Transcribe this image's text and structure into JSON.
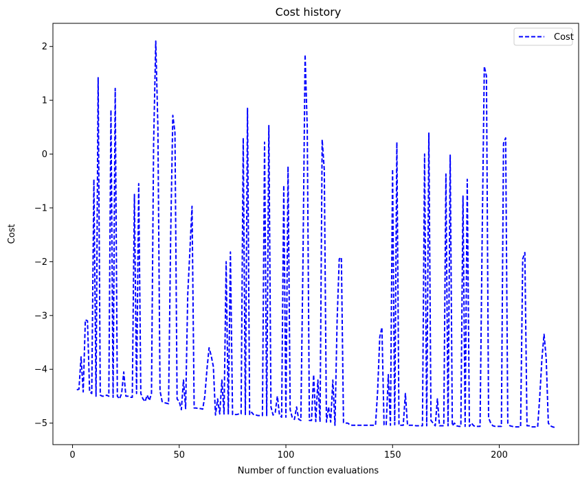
{
  "chart_data": {
    "type": "line",
    "title": "Cost history",
    "xlabel": "Number of function evaluations",
    "ylabel": "Cost",
    "xlim": [
      -9.2,
      237.2
    ],
    "ylim": [
      -5.4,
      2.43
    ],
    "xticks": [
      0,
      50,
      100,
      150,
      200
    ],
    "yticks": [
      -5,
      -4,
      -3,
      -2,
      -1,
      0,
      1,
      2
    ],
    "grid": false,
    "legend_position": "top-right",
    "series": [
      {
        "name": "Cost",
        "color": "#0000ff",
        "line_style": "dashed",
        "points": [
          [
            2,
            -4.38
          ],
          [
            3,
            -4.37
          ],
          [
            4,
            -3.77
          ],
          [
            5,
            -4.42
          ],
          [
            6,
            -3.08
          ],
          [
            7,
            -3.1
          ],
          [
            8,
            -4.42
          ],
          [
            9,
            -4.45
          ],
          [
            10,
            -0.47
          ],
          [
            11,
            -4.5
          ],
          [
            12,
            1.42
          ],
          [
            13,
            -4.48
          ],
          [
            14,
            -4.5
          ],
          [
            15,
            -4.5
          ],
          [
            16,
            -4.48
          ],
          [
            17,
            -4.5
          ],
          [
            18,
            0.82
          ],
          [
            19,
            -4.52
          ],
          [
            20,
            1.22
          ],
          [
            21,
            -4.5
          ],
          [
            22,
            -4.55
          ],
          [
            23,
            -4.45
          ],
          [
            24,
            -4.05
          ],
          [
            25,
            -4.5
          ],
          [
            26,
            -4.5
          ],
          [
            27,
            -4.52
          ],
          [
            28,
            -4.52
          ],
          [
            29,
            -0.75
          ],
          [
            30,
            -4.45
          ],
          [
            31,
            -0.55
          ],
          [
            32,
            -4.45
          ],
          [
            33,
            -4.55
          ],
          [
            34,
            -4.6
          ],
          [
            35,
            -4.48
          ],
          [
            36,
            -4.58
          ],
          [
            37,
            -4.45
          ],
          [
            38,
            0.2
          ],
          [
            39,
            2.1
          ],
          [
            40,
            0.5
          ],
          [
            41,
            -4.4
          ],
          [
            42,
            -4.6
          ],
          [
            43,
            -4.62
          ],
          [
            44,
            -4.63
          ],
          [
            45,
            -4.64
          ],
          [
            46,
            -1.5
          ],
          [
            47,
            0.72
          ],
          [
            48,
            0.4
          ],
          [
            49,
            -4.55
          ],
          [
            50,
            -4.6
          ],
          [
            51,
            -4.75
          ],
          [
            52,
            -4.2
          ],
          [
            53,
            -4.73
          ],
          [
            54,
            -2.6
          ],
          [
            55,
            -1.8
          ],
          [
            56,
            -0.97
          ],
          [
            57,
            -4.72
          ],
          [
            58,
            -4.72
          ],
          [
            59,
            -4.73
          ],
          [
            60,
            -4.73
          ],
          [
            61,
            -4.74
          ],
          [
            62,
            -4.5
          ],
          [
            63,
            -4.0
          ],
          [
            64,
            -3.6
          ],
          [
            65,
            -3.75
          ],
          [
            66,
            -3.95
          ],
          [
            67,
            -4.85
          ],
          [
            68,
            -4.55
          ],
          [
            69,
            -4.83
          ],
          [
            70,
            -4.2
          ],
          [
            71,
            -4.83
          ],
          [
            72,
            -2.0
          ],
          [
            73,
            -4.84
          ],
          [
            74,
            -1.82
          ],
          [
            75,
            -4.84
          ],
          [
            76,
            -4.84
          ],
          [
            77,
            -4.84
          ],
          [
            78,
            -4.83
          ],
          [
            79,
            -4.83
          ],
          [
            80,
            0.3
          ],
          [
            81,
            -4.84
          ],
          [
            82,
            0.85
          ],
          [
            83,
            -4.84
          ],
          [
            84,
            -4.8
          ],
          [
            85,
            -4.85
          ],
          [
            86,
            -4.85
          ],
          [
            87,
            -4.86
          ],
          [
            88,
            -4.86
          ],
          [
            89,
            -4.86
          ],
          [
            90,
            0.22
          ],
          [
            91,
            -4.86
          ],
          [
            92,
            0.53
          ],
          [
            93,
            -4.7
          ],
          [
            94,
            -4.85
          ],
          [
            95,
            -4.8
          ],
          [
            96,
            -4.5
          ],
          [
            97,
            -4.85
          ],
          [
            98,
            -4.89
          ],
          [
            99,
            -0.58
          ],
          [
            100,
            -4.89
          ],
          [
            101,
            -0.23
          ],
          [
            102,
            -4.75
          ],
          [
            103,
            -4.9
          ],
          [
            104,
            -4.93
          ],
          [
            105,
            -4.7
          ],
          [
            106,
            -4.93
          ],
          [
            107,
            -4.95
          ],
          [
            108,
            -2.0
          ],
          [
            109,
            1.85
          ],
          [
            110,
            0.5
          ],
          [
            111,
            -4.95
          ],
          [
            112,
            -4.95
          ],
          [
            113,
            -4.1
          ],
          [
            114,
            -4.97
          ],
          [
            115,
            -4.2
          ],
          [
            116,
            -4.98
          ],
          [
            117,
            0.27
          ],
          [
            118,
            -0.3
          ],
          [
            119,
            -4.98
          ],
          [
            120,
            -4.7
          ],
          [
            121,
            -4.98
          ],
          [
            122,
            -4.2
          ],
          [
            123,
            -5.04
          ],
          [
            124,
            -3.1
          ],
          [
            125,
            -1.95
          ],
          [
            126,
            -1.92
          ],
          [
            127,
            -4.99
          ],
          [
            128,
            -5.0
          ],
          [
            129,
            -5.0
          ],
          [
            130,
            -5.03
          ],
          [
            131,
            -5.04
          ],
          [
            132,
            -5.04
          ],
          [
            133,
            -5.04
          ],
          [
            134,
            -5.04
          ],
          [
            135,
            -5.04
          ],
          [
            136,
            -5.04
          ],
          [
            137,
            -5.04
          ],
          [
            138,
            -5.04
          ],
          [
            139,
            -5.04
          ],
          [
            140,
            -5.04
          ],
          [
            141,
            -5.04
          ],
          [
            142,
            -5.04
          ],
          [
            143,
            -4.4
          ],
          [
            144,
            -3.4
          ],
          [
            145,
            -3.22
          ],
          [
            146,
            -5.03
          ],
          [
            147,
            -5.04
          ],
          [
            148,
            -4.1
          ],
          [
            149,
            -5.04
          ],
          [
            150,
            -0.28
          ],
          [
            151,
            -5.03
          ],
          [
            152,
            0.22
          ],
          [
            153,
            -5.04
          ],
          [
            154,
            -5.04
          ],
          [
            155,
            -5.04
          ],
          [
            156,
            -4.45
          ],
          [
            157,
            -5.04
          ],
          [
            158,
            -5.04
          ],
          [
            159,
            -5.04
          ],
          [
            160,
            -5.04
          ],
          [
            161,
            -5.05
          ],
          [
            162,
            -5.05
          ],
          [
            163,
            -5.05
          ],
          [
            164,
            -5.05
          ],
          [
            165,
            0.0
          ],
          [
            166,
            -5.05
          ],
          [
            167,
            0.39
          ],
          [
            168,
            -4.95
          ],
          [
            169,
            -5.0
          ],
          [
            170,
            -5.05
          ],
          [
            171,
            -4.55
          ],
          [
            172,
            -5.05
          ],
          [
            173,
            -5.05
          ],
          [
            174,
            -5.05
          ],
          [
            175,
            -0.37
          ],
          [
            176,
            -5.05
          ],
          [
            177,
            -0.02
          ],
          [
            178,
            -5.05
          ],
          [
            179,
            -5.0
          ],
          [
            180,
            -5.05
          ],
          [
            181,
            -5.06
          ],
          [
            182,
            -5.06
          ],
          [
            183,
            -0.78
          ],
          [
            184,
            -5.06
          ],
          [
            185,
            -0.47
          ],
          [
            186,
            -5.06
          ],
          [
            187,
            -5.0
          ],
          [
            188,
            -5.05
          ],
          [
            189,
            -5.06
          ],
          [
            190,
            -5.06
          ],
          [
            191,
            -5.06
          ],
          [
            192,
            -1.5
          ],
          [
            193,
            1.63
          ],
          [
            194,
            1.45
          ],
          [
            195,
            -4.9
          ],
          [
            196,
            -5.0
          ],
          [
            197,
            -5.05
          ],
          [
            198,
            -5.06
          ],
          [
            199,
            -5.06
          ],
          [
            200,
            -5.06
          ],
          [
            201,
            -5.06
          ],
          [
            202,
            0.2
          ],
          [
            203,
            0.3
          ],
          [
            204,
            -5.0
          ],
          [
            205,
            -5.05
          ],
          [
            206,
            -5.06
          ],
          [
            207,
            -5.07
          ],
          [
            208,
            -5.07
          ],
          [
            209,
            -5.07
          ],
          [
            210,
            -5.07
          ],
          [
            211,
            -1.95
          ],
          [
            212,
            -1.83
          ],
          [
            213,
            -5.05
          ],
          [
            214,
            -5.05
          ],
          [
            215,
            -5.07
          ],
          [
            216,
            -5.07
          ],
          [
            217,
            -5.07
          ],
          [
            218,
            -5.07
          ],
          [
            219,
            -4.5
          ],
          [
            220,
            -3.8
          ],
          [
            221,
            -3.35
          ],
          [
            222,
            -3.8
          ],
          [
            223,
            -5.0
          ],
          [
            224,
            -5.05
          ],
          [
            225,
            -5.07
          ],
          [
            226,
            -5.08
          ]
        ]
      }
    ]
  }
}
